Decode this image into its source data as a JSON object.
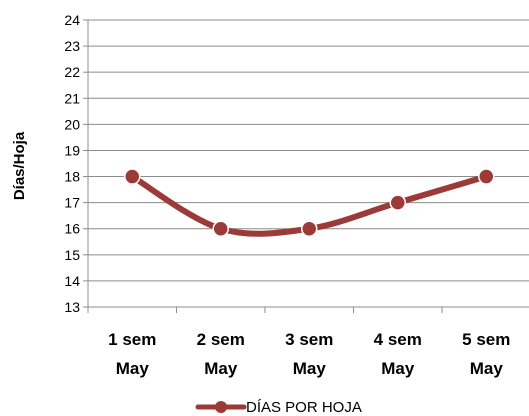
{
  "chart_data": {
    "type": "line",
    "categories": [
      [
        "1 sem",
        "May"
      ],
      [
        "2 sem",
        "May"
      ],
      [
        "3 sem",
        "May"
      ],
      [
        "4 sem",
        "May"
      ],
      [
        "5 sem",
        "May"
      ]
    ],
    "series": [
      {
        "name": "DÍAS POR HOJA",
        "values": [
          18,
          16,
          16,
          17,
          18
        ],
        "color": "#9b3a36"
      }
    ],
    "ylabel": "Días/Hoja",
    "ylim": [
      13,
      24
    ],
    "yticks": [
      13,
      14,
      15,
      16,
      17,
      18,
      19,
      20,
      21,
      22,
      23,
      24
    ],
    "grid": true,
    "smooth": true,
    "legend_position": "bottom"
  }
}
